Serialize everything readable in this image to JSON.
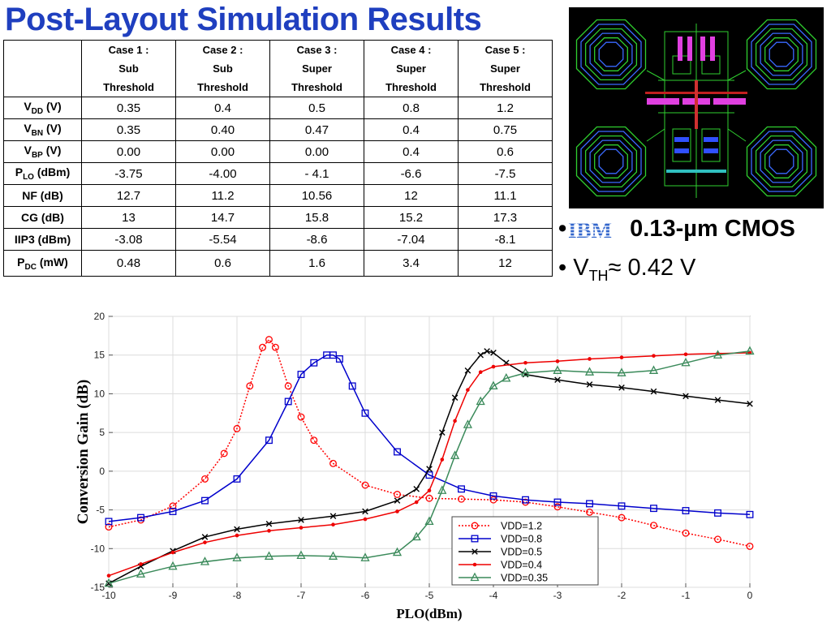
{
  "title": "Post-Layout Simulation Results",
  "table": {
    "headers": [
      [
        "Case 1 :",
        "Sub",
        "Threshold"
      ],
      [
        "Case 2 :",
        "Sub",
        "Threshold"
      ],
      [
        "Case 3 :",
        "Super",
        "Threshold"
      ],
      [
        "Case 4 :",
        "Super",
        "Threshold"
      ],
      [
        "Case 5 :",
        "Super",
        "Threshold"
      ]
    ],
    "rows": [
      {
        "label": "V",
        "sub": "DD",
        "unit": " (V)",
        "values": [
          "0.35",
          "0.4",
          "0.5",
          "0.8",
          "1.2"
        ]
      },
      {
        "label": "V",
        "sub": "BN",
        "unit": " (V)",
        "values": [
          "0.35",
          "0.40",
          "0.47",
          "0.4",
          "0.75"
        ]
      },
      {
        "label": "V",
        "sub": "BP",
        "unit": " (V)",
        "values": [
          "0.00",
          "0.00",
          "0.00",
          "0.4",
          "0.6"
        ]
      },
      {
        "label": "P",
        "sub": "LO",
        "unit": " (dBm)",
        "values": [
          "-3.75",
          "-4.00",
          "- 4.1",
          "-6.6",
          "-7.5"
        ]
      },
      {
        "label": "NF (dB)",
        "sub": "",
        "unit": "",
        "values": [
          "12.7",
          "11.2",
          "10.56",
          "12",
          "11.1"
        ]
      },
      {
        "label": "CG (dB)",
        "sub": "",
        "unit": "",
        "values": [
          "13",
          "14.7",
          "15.8",
          "15.2",
          "17.3"
        ]
      },
      {
        "label": "IIP3 (dBm)",
        "sub": "",
        "unit": "",
        "values": [
          "-3.08",
          "-5.54",
          "-8.6",
          "-7.04",
          "-8.1"
        ]
      },
      {
        "label": "P",
        "sub": "DC",
        "unit": " (mW)",
        "values": [
          "0.48",
          "0.6",
          "1.6",
          "3.4",
          "12"
        ]
      }
    ]
  },
  "bullets": {
    "tech_logo": "IBM",
    "tech_text": "0.13-µm CMOS",
    "vth_prefix": "V",
    "vth_sub": "TH",
    "vth_rest": "≈ 0.42 V"
  },
  "colors": {
    "title": "#1f3fbf",
    "ibm": "#3366cc",
    "vdd_1_2": "#ff0000",
    "vdd_0_8": "#0000cc",
    "vdd_0_5": "#000000",
    "vdd_0_4": "#ee0000",
    "vdd_0_35": "#3a8a5a"
  },
  "chart_data": {
    "type": "line",
    "xlabel": "PLO(dBm)",
    "ylabel": "Conversion Gain (dB)",
    "xlim": [
      -10,
      0
    ],
    "ylim": [
      -15,
      20
    ],
    "xticks": [
      "-10",
      "-9",
      "-8",
      "-7",
      "-6",
      "-5",
      "-4",
      "-3",
      "-2",
      "-1",
      "0"
    ],
    "yticks": [
      "-15",
      "-10",
      "-5",
      "0",
      "5",
      "10",
      "15",
      "20"
    ],
    "grid": true,
    "legend_position": "bottom-right",
    "legend": [
      "VDD=1.2",
      "VDD=0.8",
      "VDD=0.5",
      "VDD=0.4",
      "VDD=0.35"
    ],
    "series": [
      {
        "name": "VDD=1.2",
        "marker": "circle",
        "line": "dotted",
        "color": "#ff0000",
        "x": [
          -10,
          -9.5,
          -9,
          -8.5,
          -8.2,
          -8,
          -7.8,
          -7.6,
          -7.5,
          -7.4,
          -7.2,
          -7,
          -6.8,
          -6.5,
          -6,
          -5.5,
          -5,
          -4.5,
          -4,
          -3.5,
          -3,
          -2.5,
          -2,
          -1.5,
          -1,
          -0.5,
          0
        ],
        "y": [
          -7.2,
          -6.3,
          -4.5,
          -1,
          2.3,
          5.5,
          11,
          16,
          17,
          16,
          11,
          7,
          4,
          1,
          -1.8,
          -3,
          -3.5,
          -3.6,
          -3.7,
          -4,
          -4.6,
          -5.3,
          -6,
          -7,
          -8,
          -8.8,
          -9.7
        ]
      },
      {
        "name": "VDD=0.8",
        "marker": "square",
        "line": "solid",
        "color": "#0000cc",
        "x": [
          -10,
          -9.5,
          -9,
          -8.5,
          -8,
          -7.5,
          -7.2,
          -7,
          -6.8,
          -6.6,
          -6.5,
          -6.4,
          -6.2,
          -6,
          -5.5,
          -5,
          -4.5,
          -4,
          -3.5,
          -3,
          -2.5,
          -2,
          -1.5,
          -1,
          -0.5,
          0
        ],
        "y": [
          -6.5,
          -6,
          -5.2,
          -3.8,
          -1,
          4,
          9,
          12.5,
          14,
          15,
          15,
          14.5,
          11,
          7.5,
          2.5,
          -0.5,
          -2.3,
          -3.2,
          -3.7,
          -4,
          -4.2,
          -4.5,
          -4.8,
          -5.1,
          -5.4,
          -5.6
        ]
      },
      {
        "name": "VDD=0.5",
        "marker": "x",
        "line": "solid",
        "color": "#000000",
        "x": [
          -10,
          -9.5,
          -9,
          -8.5,
          -8,
          -7.5,
          -7,
          -6.5,
          -6,
          -5.5,
          -5.2,
          -5,
          -4.8,
          -4.6,
          -4.4,
          -4.2,
          -4.1,
          -4,
          -3.8,
          -3.5,
          -3,
          -2.5,
          -2,
          -1.5,
          -1,
          -0.5,
          0
        ],
        "y": [
          -14.5,
          -12.3,
          -10.3,
          -8.5,
          -7.5,
          -6.8,
          -6.3,
          -5.8,
          -5.2,
          -3.8,
          -2.3,
          0.3,
          5,
          9.5,
          13,
          15,
          15.5,
          15.3,
          14,
          12.5,
          11.8,
          11.2,
          10.8,
          10.3,
          9.7,
          9.2,
          8.7
        ]
      },
      {
        "name": "VDD=0.4",
        "marker": "dot",
        "line": "solid",
        "color": "#ee0000",
        "x": [
          -10,
          -9.5,
          -9,
          -8.5,
          -8,
          -7.5,
          -7,
          -6.5,
          -6,
          -5.5,
          -5.2,
          -5,
          -4.8,
          -4.6,
          -4.4,
          -4.2,
          -4,
          -3.5,
          -3,
          -2.5,
          -2,
          -1.5,
          -1,
          -0.5,
          0
        ],
        "y": [
          -13.5,
          -12,
          -10.5,
          -9.2,
          -8.3,
          -7.7,
          -7.3,
          -6.9,
          -6.2,
          -5.2,
          -4,
          -2.5,
          1.5,
          6.5,
          10.5,
          12.8,
          13.5,
          14,
          14.2,
          14.5,
          14.7,
          14.9,
          15.1,
          15.2,
          15.3
        ]
      },
      {
        "name": "VDD=0.35",
        "marker": "triangle",
        "line": "solid",
        "color": "#3a8a5a",
        "x": [
          -10,
          -9.5,
          -9,
          -8.5,
          -8,
          -7.5,
          -7,
          -6.5,
          -6,
          -5.5,
          -5.2,
          -5,
          -4.8,
          -4.6,
          -4.4,
          -4.2,
          -4,
          -3.8,
          -3.5,
          -3,
          -2.5,
          -2,
          -1.5,
          -1,
          -0.5,
          0
        ],
        "y": [
          -14.5,
          -13.3,
          -12.3,
          -11.7,
          -11.2,
          -11,
          -10.9,
          -11,
          -11.2,
          -10.5,
          -8.5,
          -6.5,
          -2.5,
          2,
          6,
          9,
          11,
          12,
          12.7,
          13,
          12.8,
          12.7,
          13,
          14,
          15,
          15.5
        ]
      }
    ]
  }
}
